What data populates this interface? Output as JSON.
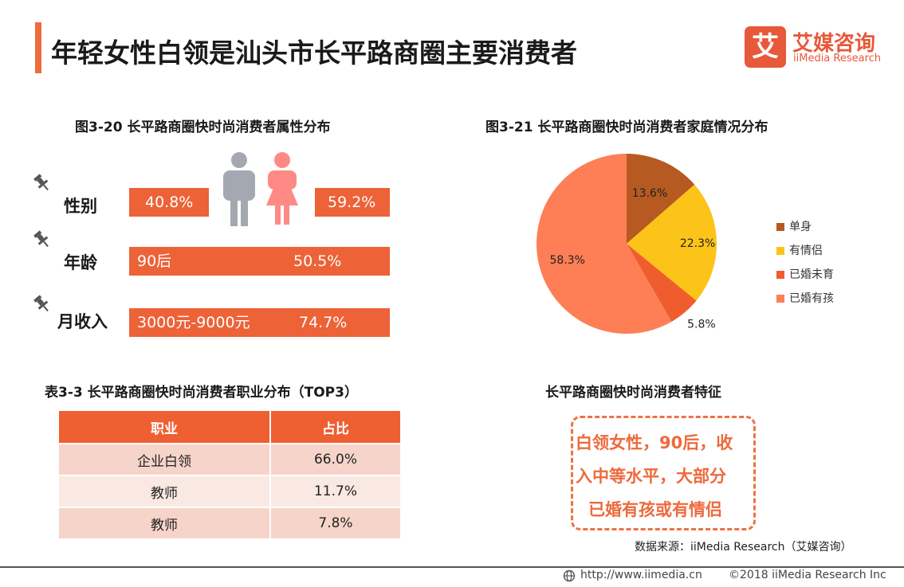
{
  "header": {
    "title": "年轻女性白领是汕头市长平路商圈主要消费者",
    "logo_mark": "艾",
    "logo_cn": "艾媒咨询",
    "logo_en": "iiMedia Research"
  },
  "attributes": {
    "title": "图3-20 长平路商圈快时尚消费者属性分布",
    "gender": {
      "label": "性别",
      "male": "40.8%",
      "female": "59.2%"
    },
    "age": {
      "label": "年龄",
      "value_label": "90后",
      "pct": "50.5%"
    },
    "income": {
      "label": "月收入",
      "value_label": "3000元-9000元",
      "pct": "74.7%"
    }
  },
  "chart_data": {
    "type": "pie",
    "title": "图3-21 长平路商圈快时尚消费者家庭情况分布",
    "categories": [
      "单身",
      "有情侣",
      "已婚未育",
      "已婚有孩"
    ],
    "values": [
      13.6,
      22.3,
      5.8,
      58.3
    ],
    "value_labels": [
      "13.6%",
      "22.3%",
      "5.8%",
      "58.3%"
    ],
    "colors": [
      "#b65a22",
      "#fcc418",
      "#ef5d2f",
      "#fe7f56"
    ],
    "legend": "right"
  },
  "table": {
    "title": "表3-3 长平路商圈快时尚消费者职业分布（TOP3）",
    "headers": [
      "职业",
      "占比"
    ],
    "rows": [
      [
        "企业白领",
        "66.0%"
      ],
      [
        "教师",
        "11.7%"
      ],
      [
        "教师",
        "7.8%"
      ]
    ]
  },
  "feature": {
    "title": "长平路商圈快时尚消费者特征",
    "lines": [
      "白领女性，90后，收",
      "入中等水平，大部分",
      "已婚有孩或有情侣"
    ]
  },
  "source": "数据来源：iiMedia Research（艾媒咨询）",
  "footer": {
    "url": "http://www.iimedia.cn",
    "copyright": "©2018  iiMedia Research  Inc"
  },
  "colors": {
    "accent": "#ed6237",
    "male_figure": "#a3a8b1",
    "female_figure": "#fe8a85"
  }
}
